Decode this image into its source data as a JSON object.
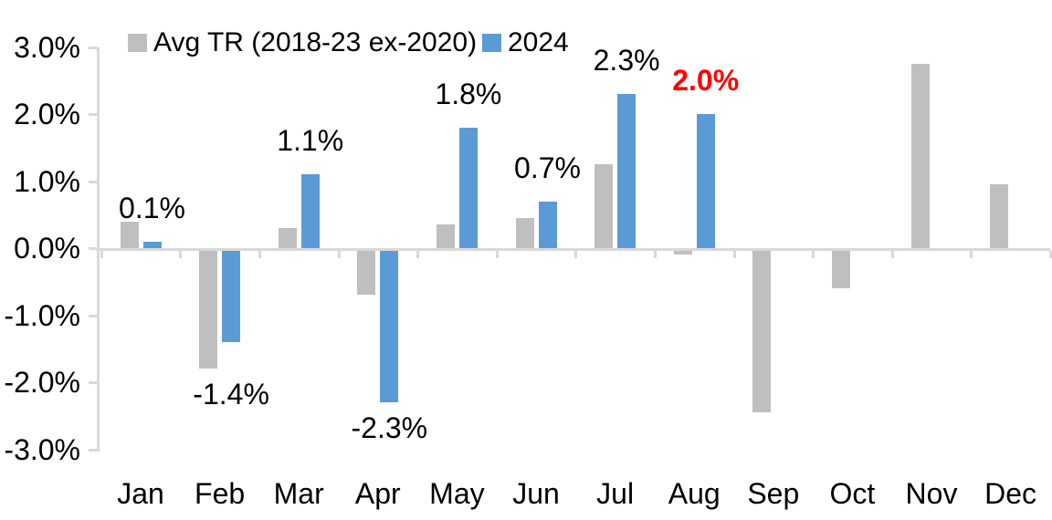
{
  "chart_data": {
    "type": "bar",
    "title": "",
    "categories": [
      "Jan",
      "Feb",
      "Mar",
      "Apr",
      "May",
      "Jun",
      "Jul",
      "Aug",
      "Sep",
      "Oct",
      "Nov",
      "Dec"
    ],
    "series": [
      {
        "name": "Avg TR (2018-23 ex-2020)",
        "color": "#BFBFBF",
        "values": [
          0.4,
          -1.8,
          0.3,
          -0.7,
          0.35,
          0.45,
          1.25,
          -0.1,
          -2.45,
          -0.6,
          2.75,
          0.95
        ]
      },
      {
        "name": "2024",
        "color": "#5B9BD5",
        "values": [
          0.1,
          -1.4,
          1.1,
          -2.3,
          1.8,
          0.7,
          2.3,
          2.0,
          null,
          null,
          null,
          null
        ]
      }
    ],
    "data_labels": [
      {
        "category": "Jan",
        "series": "2024",
        "text": "0.1%",
        "position": "above",
        "color": "#000000",
        "bold": false
      },
      {
        "category": "Feb",
        "series": "2024",
        "text": "-1.4%",
        "position": "below",
        "color": "#000000",
        "bold": false
      },
      {
        "category": "Mar",
        "series": "2024",
        "text": "1.1%",
        "position": "above",
        "color": "#000000",
        "bold": false
      },
      {
        "category": "Apr",
        "series": "2024",
        "text": "-2.3%",
        "position": "below",
        "color": "#000000",
        "bold": false
      },
      {
        "category": "May",
        "series": "2024",
        "text": "1.8%",
        "position": "above",
        "color": "#000000",
        "bold": false
      },
      {
        "category": "Jun",
        "series": "2024",
        "text": "0.7%",
        "position": "above",
        "color": "#000000",
        "bold": false
      },
      {
        "category": "Jul",
        "series": "2024",
        "text": "2.3%",
        "position": "above",
        "color": "#000000",
        "bold": false
      },
      {
        "category": "Aug",
        "series": "2024",
        "text": "2.0%",
        "position": "above",
        "color": "#FF0000",
        "bold": true
      }
    ],
    "y_axis": {
      "min": -3.0,
      "max": 3.0,
      "step": 1.0,
      "tick_labels": [
        "3.0%",
        "2.0%",
        "1.0%",
        "0.0%",
        "-1.0%",
        "-2.0%",
        "-3.0%"
      ],
      "format": "percent"
    },
    "legend": {
      "position": "top",
      "entries": [
        {
          "label": "Avg TR (2018-23 ex-2020)",
          "color": "#BFBFBF"
        },
        {
          "label": "2024",
          "color": "#5B9BD5"
        }
      ]
    },
    "grid": false,
    "axis_color": "#D9D9D9",
    "text_color": "#000000",
    "highlight_color": "#FF0000",
    "background": "#FFFFFF"
  }
}
